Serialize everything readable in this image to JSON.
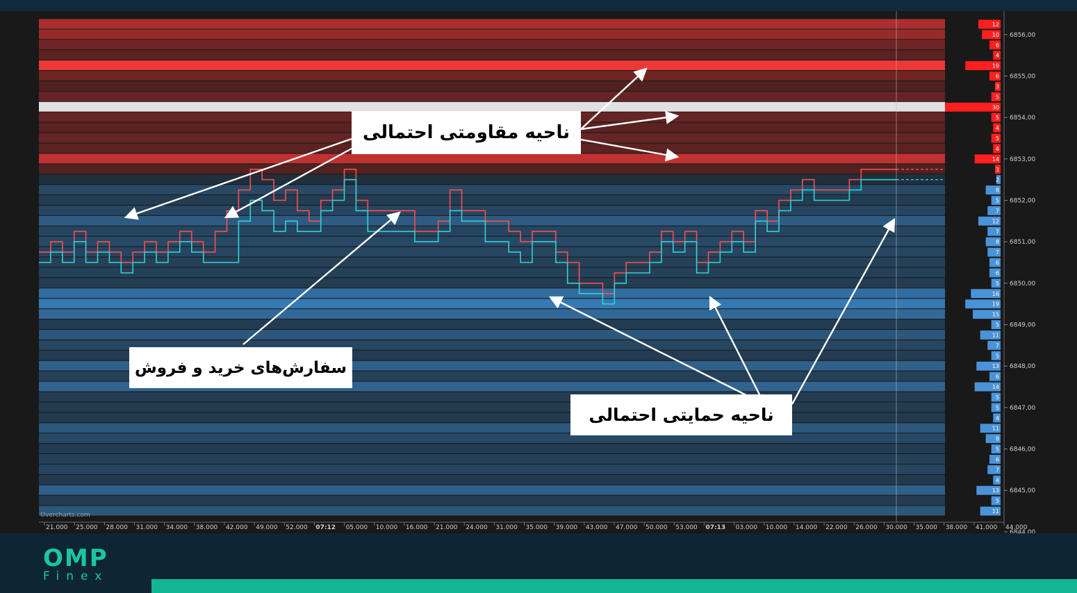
{
  "chart_data": {
    "type": "heatmap",
    "title": "",
    "xlabel": "",
    "ylabel": "",
    "price_ticks": [
      "6856,00",
      "6855,00",
      "6854,00",
      "6853,00",
      "6852,00",
      "6851,00",
      "6850,00",
      "6849,00",
      "6848,00",
      "6847,00",
      "6846,00",
      "6845,00",
      "6844,00"
    ],
    "time_ticks": [
      "21.000",
      "25.000",
      "28.000",
      "31.000",
      "34.000",
      "38.000",
      "42.000",
      "49.000",
      "52.000",
      "07:12",
      "05.000",
      "10.000",
      "16.000",
      "21.000",
      "24.000",
      "31.000",
      "35.000",
      "39.000",
      "43.000",
      "47.000",
      "50.000",
      "53.000",
      "07:13",
      "03.000",
      "10.000",
      "14.000",
      "22.000",
      "26.000",
      "30.000",
      "35.000",
      "38.000",
      "41.000",
      "44.000"
    ],
    "depth_levels": [
      {
        "price": 6856.25,
        "size": 12,
        "side": "ask"
      },
      {
        "price": 6856.0,
        "size": 10,
        "side": "ask"
      },
      {
        "price": 6855.75,
        "size": 6,
        "side": "ask"
      },
      {
        "price": 6855.5,
        "size": 4,
        "side": "ask"
      },
      {
        "price": 6855.25,
        "size": 19,
        "side": "ask"
      },
      {
        "price": 6855.0,
        "size": 6,
        "side": "ask"
      },
      {
        "price": 6854.75,
        "size": 3,
        "side": "ask"
      },
      {
        "price": 6854.5,
        "size": 5,
        "side": "ask"
      },
      {
        "price": 6854.25,
        "size": 30,
        "side": "ask"
      },
      {
        "price": 6854.0,
        "size": 5,
        "side": "ask"
      },
      {
        "price": 6853.75,
        "size": 4,
        "side": "ask"
      },
      {
        "price": 6853.5,
        "size": 5,
        "side": "ask"
      },
      {
        "price": 6853.25,
        "size": 4,
        "side": "ask"
      },
      {
        "price": 6853.0,
        "size": 14,
        "side": "ask"
      },
      {
        "price": 6852.75,
        "size": 3,
        "side": "ask"
      },
      {
        "price": 6852.5,
        "size": 2,
        "side": "bid"
      },
      {
        "price": 6852.25,
        "size": 8,
        "side": "bid"
      },
      {
        "price": 6852.0,
        "size": 5,
        "side": "bid"
      },
      {
        "price": 6851.75,
        "size": 7,
        "side": "bid"
      },
      {
        "price": 6851.5,
        "size": 12,
        "side": "bid"
      },
      {
        "price": 6851.25,
        "size": 7,
        "side": "bid"
      },
      {
        "price": 6851.0,
        "size": 8,
        "side": "bid"
      },
      {
        "price": 6850.75,
        "size": 7,
        "side": "bid"
      },
      {
        "price": 6850.5,
        "size": 6,
        "side": "bid"
      },
      {
        "price": 6850.25,
        "size": 6,
        "side": "bid"
      },
      {
        "price": 6850.0,
        "size": 5,
        "side": "bid"
      },
      {
        "price": 6849.75,
        "size": 16,
        "side": "bid"
      },
      {
        "price": 6849.5,
        "size": 19,
        "side": "bid"
      },
      {
        "price": 6849.25,
        "size": 15,
        "side": "bid"
      },
      {
        "price": 6849.0,
        "size": 5,
        "side": "bid"
      },
      {
        "price": 6848.75,
        "size": 11,
        "side": "bid"
      },
      {
        "price": 6848.5,
        "size": 7,
        "side": "bid"
      },
      {
        "price": 6848.25,
        "size": 5,
        "side": "bid"
      },
      {
        "price": 6848.0,
        "size": 13,
        "side": "bid"
      },
      {
        "price": 6847.75,
        "size": 6,
        "side": "bid"
      },
      {
        "price": 6847.5,
        "size": 14,
        "side": "bid"
      },
      {
        "price": 6847.25,
        "size": 5,
        "side": "bid"
      },
      {
        "price": 6847.0,
        "size": 5,
        "side": "bid"
      },
      {
        "price": 6846.75,
        "size": 4,
        "side": "bid"
      },
      {
        "price": 6846.5,
        "size": 11,
        "side": "bid"
      },
      {
        "price": 6846.25,
        "size": 8,
        "side": "bid"
      },
      {
        "price": 6846.0,
        "size": 5,
        "side": "bid"
      },
      {
        "price": 6845.75,
        "size": 6,
        "side": "bid"
      },
      {
        "price": 6845.5,
        "size": 7,
        "side": "bid"
      },
      {
        "price": 6845.25,
        "size": 4,
        "side": "bid"
      },
      {
        "price": 6845.0,
        "size": 13,
        "side": "bid"
      },
      {
        "price": 6844.75,
        "size": 5,
        "side": "bid"
      },
      {
        "price": 6844.5,
        "size": 11,
        "side": "bid"
      }
    ],
    "ask_line": [
      6850.75,
      6851,
      6850.75,
      6851.25,
      6850.75,
      6851,
      6850.75,
      6850.5,
      6850.75,
      6851,
      6850.75,
      6851,
      6851.25,
      6851,
      6850.75,
      6851.25,
      6851.75,
      6852.25,
      6852.75,
      6852.5,
      6852,
      6852.25,
      6851.75,
      6851.5,
      6852,
      6852.25,
      6852.75,
      6852,
      6851.75,
      6851.75,
      6851.75,
      6851.75,
      6851.25,
      6851.25,
      6851.5,
      6852.25,
      6851.75,
      6851.75,
      6851.5,
      6851.5,
      6851.25,
      6851,
      6851.25,
      6851.25,
      6850.75,
      6850.5,
      6850,
      6850,
      6849.75,
      6850.25,
      6850.5,
      6850.5,
      6850.75,
      6851.25,
      6851,
      6851.25,
      6850.5,
      6850.75,
      6851,
      6851.25,
      6851,
      6851.75,
      6851.5,
      6852,
      6852.25,
      6852.5,
      6852.25,
      6852.25,
      6852.25,
      6852.5,
      6852.75,
      6852.75,
      6852.75
    ],
    "bid_line": [
      6850.5,
      6850.75,
      6850.5,
      6851,
      6850.5,
      6850.75,
      6850.5,
      6850.25,
      6850.5,
      6850.75,
      6850.5,
      6850.75,
      6851,
      6850.75,
      6850.5,
      6850.5,
      6850.5,
      6851.5,
      6852,
      6851.75,
      6851.25,
      6851.5,
      6851.25,
      6851.25,
      6851.75,
      6852,
      6852.5,
      6851.75,
      6851.25,
      6851.25,
      6851.25,
      6851.25,
      6851,
      6851,
      6851.25,
      6851.75,
      6851.5,
      6851.5,
      6851,
      6851,
      6850.75,
      6850.5,
      6851,
      6851,
      6850.5,
      6850,
      6849.75,
      6849.75,
      6849.5,
      6850,
      6850.25,
      6850.25,
      6850.5,
      6851,
      6850.75,
      6851,
      6850.25,
      6850.5,
      6850.75,
      6851,
      6850.75,
      6851.5,
      6851.25,
      6851.75,
      6852,
      6852.25,
      6852,
      6852,
      6852,
      6852.25,
      6852.5,
      6852.5,
      6852.5
    ],
    "annotations": [
      {
        "id": "resistance",
        "text": "ناحیه مقاومتی احتمالی"
      },
      {
        "id": "orders",
        "text": "سفارش‌های خرید و فروش"
      },
      {
        "id": "support",
        "text": "ناحیه حمایتی احتمالی"
      }
    ],
    "watermark": "Overcharts.com",
    "colors": {
      "ask": "#ff3b3b",
      "bid": "#3d8fd6",
      "ask_line": "#ff4d4d",
      "bid_line": "#2fd3d8",
      "strong": "#f2f2f2"
    }
  },
  "brand": {
    "name": "OMP",
    "sub": "Finex",
    "accent": "#1cc59f"
  }
}
